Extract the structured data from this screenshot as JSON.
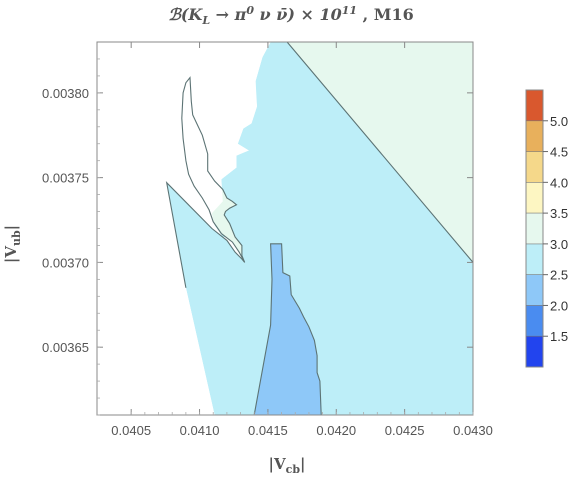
{
  "chart_data": {
    "type": "contour",
    "title": "ℬ(K_L → π⁰ ν ν̄) × 10¹¹ , M16",
    "title_parts": {
      "main": "ℬ(K",
      "sub": "L",
      "mid": " → π",
      "sup0": "0",
      "tail": " ν ν̄) × 10",
      "sup11": "11",
      "end": " , M16"
    },
    "xlabel": "|V",
    "xlabel_sub": "cb",
    "xlabel_close": "|",
    "ylabel": "|V",
    "ylabel_sub": "ub",
    "ylabel_close": "|",
    "xlim": [
      0.04025,
      0.043
    ],
    "ylim": [
      0.00361,
      0.00383
    ],
    "x_ticks": [
      0.0405,
      0.041,
      0.0415,
      0.042,
      0.0425,
      0.043
    ],
    "x_tick_labels": [
      "0.0405",
      "0.0410",
      "0.0415",
      "0.0420",
      "0.0425",
      "0.0430"
    ],
    "y_ticks": [
      0.00365,
      0.0037,
      0.00375,
      0.0038
    ],
    "y_tick_labels": [
      "0.00365",
      "0.00370",
      "0.00375",
      "0.00380"
    ],
    "colorbar": {
      "levels": [
        1.0,
        1.5,
        2.0,
        2.5,
        3.0,
        3.5,
        4.0,
        4.5,
        5.0,
        5.5
      ],
      "tick_values": [
        1.5,
        2.0,
        2.5,
        3.0,
        3.5,
        4.0,
        4.5,
        5.0
      ],
      "tick_labels": [
        "1.5",
        "2.0",
        "2.5",
        "3.0",
        "3.5",
        "4.0",
        "4.5",
        "5.0"
      ],
      "colors": [
        "#2244ee",
        "#4a8cf0",
        "#8ec8f8",
        "#bdeef8",
        "#e6f8ee",
        "#fdf6c2",
        "#f5d88a",
        "#e8b05c",
        "#d9582e"
      ]
    },
    "regions": [
      {
        "level": "3.0-3.5",
        "color": "#e6f8ee",
        "points": [
          [
            0.04043,
            0.00383
          ],
          [
            0.043,
            0.00383
          ],
          [
            0.043,
            0.0037
          ],
          [
            0.04164,
            0.00383
          ]
        ]
      },
      {
        "level": "2.5-3.0",
        "color": "#bdeef8",
        "points": [
          [
            0.04164,
            0.00383
          ],
          [
            0.043,
            0.0037
          ],
          [
            0.043,
            0.00361
          ],
          [
            0.04111,
            0.00361
          ],
          [
            0.0409,
            0.003685
          ],
          [
            0.04076,
            0.003747
          ],
          [
            0.04109,
            0.00372
          ],
          [
            0.0412,
            0.003713
          ],
          [
            0.04126,
            0.003706
          ],
          [
            0.04131,
            0.003702
          ],
          [
            0.04133,
            0.0037
          ],
          [
            0.04131,
            0.003704
          ],
          [
            0.04131,
            0.00371
          ],
          [
            0.04126,
            0.003715
          ],
          [
            0.04117,
            0.003715
          ],
          [
            0.04111,
            0.003722
          ],
          [
            0.04109,
            0.003729
          ],
          [
            0.04117,
            0.003736
          ],
          [
            0.04116,
            0.003742
          ],
          [
            0.04116,
            0.003749
          ],
          [
            0.04127,
            0.003756
          ],
          [
            0.04127,
            0.003763
          ],
          [
            0.04132,
            0.003765
          ],
          [
            0.04136,
            0.003766
          ],
          [
            0.04128,
            0.00377
          ],
          [
            0.04132,
            0.003779
          ],
          [
            0.04138,
            0.003782
          ],
          [
            0.04142,
            0.003792
          ],
          [
            0.04141,
            0.003798
          ],
          [
            0.04141,
            0.003807
          ],
          [
            0.04146,
            0.003821
          ],
          [
            0.04152,
            0.00383
          ]
        ]
      },
      {
        "level": "2.0-2.5",
        "color": "#8ec8f8",
        "points": [
          [
            0.0414,
            0.00361
          ],
          [
            0.04152,
            0.003663
          ],
          [
            0.04153,
            0.00369
          ],
          [
            0.04152,
            0.003711
          ],
          [
            0.0416,
            0.003711
          ],
          [
            0.04161,
            0.003694
          ],
          [
            0.04166,
            0.003692
          ],
          [
            0.04167,
            0.003681
          ],
          [
            0.04173,
            0.003673
          ],
          [
            0.04176,
            0.003668
          ],
          [
            0.0418,
            0.003662
          ],
          [
            0.04184,
            0.003654
          ],
          [
            0.04186,
            0.003645
          ],
          [
            0.04186,
            0.003635
          ],
          [
            0.04188,
            0.00363
          ],
          [
            0.04189,
            0.00361
          ]
        ]
      }
    ],
    "no_data_region": [
      [
        0.04043,
        0.00383
      ],
      [
        0.04043,
        0.00361
      ],
      [
        0.04111,
        0.00361
      ],
      [
        0.0409,
        0.003685
      ],
      [
        0.04076,
        0.003747
      ],
      [
        0.04111,
        0.003722
      ],
      [
        0.04109,
        0.003729
      ],
      [
        0.04117,
        0.003736
      ],
      [
        0.04116,
        0.003749
      ],
      [
        0.04127,
        0.003756
      ],
      [
        0.04127,
        0.003763
      ],
      [
        0.04136,
        0.003766
      ],
      [
        0.04128,
        0.00377
      ],
      [
        0.04132,
        0.003779
      ],
      [
        0.04138,
        0.003782
      ],
      [
        0.04142,
        0.003792
      ],
      [
        0.04141,
        0.003807
      ],
      [
        0.04146,
        0.003821
      ],
      [
        0.04152,
        0.00383
      ]
    ],
    "hole_3_0_3_5": [
      [
        0.04093,
        0.003809
      ],
      [
        0.04094,
        0.003795
      ],
      [
        0.04095,
        0.003787
      ],
      [
        0.04102,
        0.003775
      ],
      [
        0.04106,
        0.003764
      ],
      [
        0.04106,
        0.003754
      ],
      [
        0.04111,
        0.003748
      ],
      [
        0.04117,
        0.003743
      ],
      [
        0.0412,
        0.003738
      ],
      [
        0.04124,
        0.003736
      ],
      [
        0.04127,
        0.003734
      ],
      [
        0.04122,
        0.003732
      ],
      [
        0.04119,
        0.00373
      ],
      [
        0.04118,
        0.003728
      ],
      [
        0.04122,
        0.003723
      ],
      [
        0.04126,
        0.003715
      ],
      [
        0.04131,
        0.00371
      ],
      [
        0.04131,
        0.003704
      ],
      [
        0.04133,
        0.0037
      ],
      [
        0.04129,
        0.003706
      ],
      [
        0.04124,
        0.003712
      ],
      [
        0.04116,
        0.003717
      ],
      [
        0.0411,
        0.003724
      ],
      [
        0.04107,
        0.003731
      ],
      [
        0.04102,
        0.003738
      ],
      [
        0.04096,
        0.003745
      ],
      [
        0.04092,
        0.003752
      ],
      [
        0.0409,
        0.00376
      ],
      [
        0.04088,
        0.003773
      ],
      [
        0.04087,
        0.003785
      ],
      [
        0.04088,
        0.0038
      ],
      [
        0.0409,
        0.003806
      ]
    ]
  }
}
